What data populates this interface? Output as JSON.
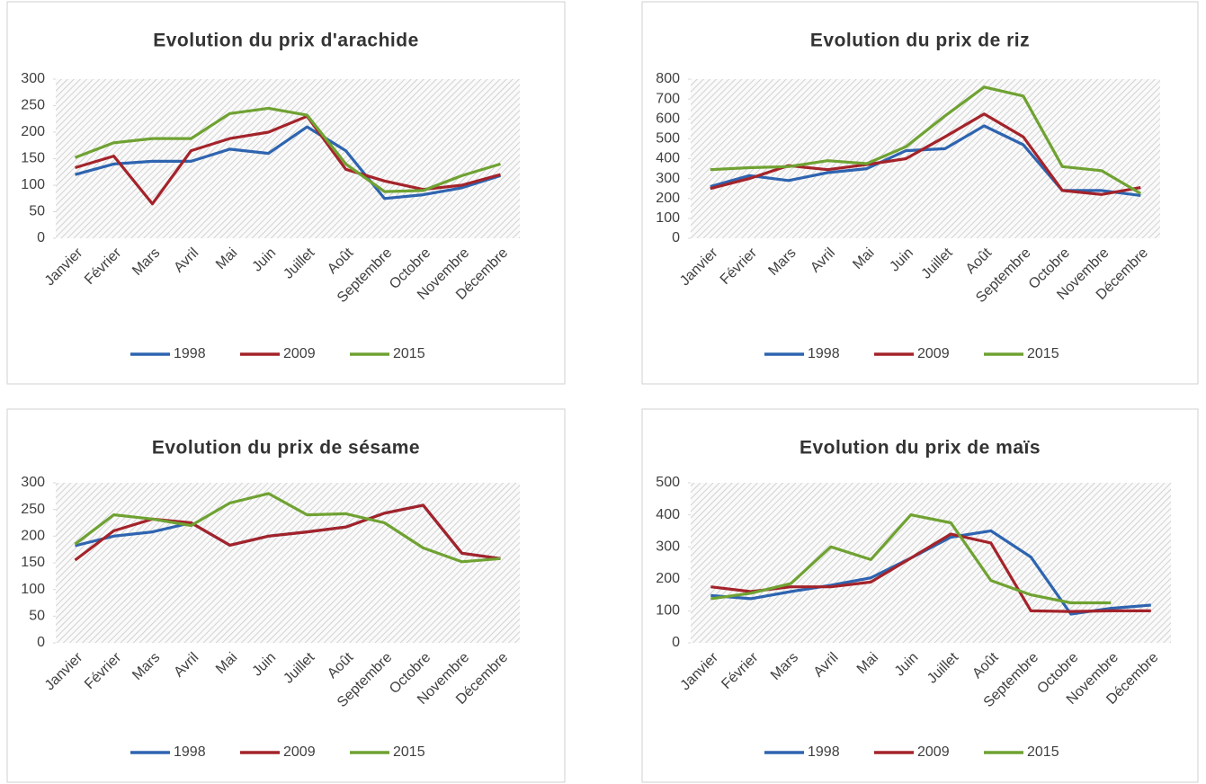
{
  "chart_data": [
    {
      "type": "line",
      "title": "Evolution du prix d'arachide",
      "categories": [
        "Janvier",
        "Février",
        "Mars",
        "Avril",
        "Mai",
        "Juin",
        "Juillet",
        "Août",
        "Septembre",
        "Octobre",
        "Novembre",
        "Décembre"
      ],
      "ylim": [
        0,
        300
      ],
      "yticks": [
        0,
        50,
        100,
        150,
        200,
        250,
        300
      ],
      "series": [
        {
          "name": "1998",
          "color": "#2e64b0",
          "values": [
            120,
            140,
            145,
            145,
            168,
            160,
            210,
            165,
            75,
            82,
            95,
            118
          ]
        },
        {
          "name": "2009",
          "color": "#a4232a",
          "values": [
            133,
            155,
            65,
            165,
            188,
            200,
            230,
            130,
            108,
            92,
            100,
            120
          ]
        },
        {
          "name": "2015",
          "color": "#6fa232",
          "values": [
            152,
            180,
            188,
            188,
            235,
            245,
            232,
            140,
            88,
            90,
            118,
            140
          ]
        }
      ]
    },
    {
      "type": "line",
      "title": "Evolution du prix de riz",
      "categories": [
        "Janvier",
        "Février",
        "Mars",
        "Avril",
        "Mai",
        "Juin",
        "Juillet",
        "Août",
        "Septembre",
        "Octobre",
        "Novembre",
        "Décembre"
      ],
      "ylim": [
        0,
        800
      ],
      "yticks": [
        0,
        100,
        200,
        300,
        400,
        500,
        600,
        700,
        800
      ],
      "series": [
        {
          "name": "1998",
          "color": "#2e64b0",
          "values": [
            260,
            315,
            290,
            330,
            350,
            440,
            450,
            565,
            470,
            240,
            240,
            215
          ]
        },
        {
          "name": "2009",
          "color": "#a4232a",
          "values": [
            250,
            300,
            365,
            345,
            370,
            400,
            510,
            625,
            510,
            240,
            220,
            255
          ]
        },
        {
          "name": "2015",
          "color": "#6fa232",
          "values": [
            345,
            355,
            360,
            390,
            375,
            460,
            615,
            760,
            715,
            360,
            340,
            225
          ]
        }
      ]
    },
    {
      "type": "line",
      "title": "Evolution du prix de sésame",
      "categories": [
        "Janvier",
        "Février",
        "Mars",
        "Avril",
        "Mai",
        "Juin",
        "Juillet",
        "Août",
        "Septembre",
        "Octobre",
        "Novembre",
        "Décembre"
      ],
      "ylim": [
        0,
        300
      ],
      "yticks": [
        0,
        50,
        100,
        150,
        200,
        250,
        300
      ],
      "series": [
        {
          "name": "1998",
          "color": "#2e64b0",
          "values": [
            182,
            200,
            208,
            225,
            183,
            200,
            208,
            217,
            243,
            258,
            168,
            158
          ]
        },
        {
          "name": "2009",
          "color": "#a4232a",
          "values": [
            155,
            210,
            232,
            225,
            183,
            200,
            208,
            217,
            243,
            258,
            168,
            158
          ]
        },
        {
          "name": "2015",
          "color": "#6fa232",
          "values": [
            185,
            240,
            232,
            220,
            262,
            280,
            240,
            242,
            225,
            178,
            152,
            158
          ]
        }
      ]
    },
    {
      "type": "line",
      "title": "Evolution du prix de maïs",
      "categories": [
        "Janvier",
        "Février",
        "Mars",
        "Avril",
        "Mai",
        "Juin",
        "Juillet",
        "Août",
        "Septembre",
        "Octobre",
        "Novembre",
        "Décembre"
      ],
      "ylim": [
        0,
        500
      ],
      "yticks": [
        0,
        100,
        200,
        300,
        400,
        500
      ],
      "series": [
        {
          "name": "1998",
          "color": "#2e64b0",
          "values": [
            148,
            138,
            160,
            180,
            203,
            265,
            330,
            350,
            268,
            90,
            108,
            118
          ]
        },
        {
          "name": "2009",
          "color": "#a4232a",
          "values": [
            175,
            160,
            175,
            175,
            190,
            265,
            340,
            312,
            100,
            98,
            100,
            100
          ]
        },
        {
          "name": "2015",
          "color": "#6fa232",
          "values": [
            138,
            155,
            185,
            300,
            260,
            400,
            375,
            195,
            150,
            125,
            125,
            null
          ]
        }
      ]
    }
  ]
}
